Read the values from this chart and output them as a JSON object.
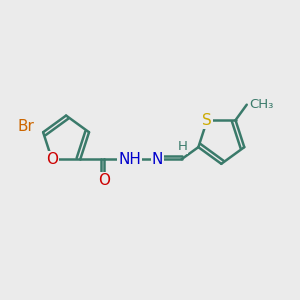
{
  "bg_color": "#ebebeb",
  "bond_color": "#3a7a6a",
  "bond_width": 1.8,
  "atom_colors": {
    "Br": "#cc6600",
    "O": "#cc0000",
    "N": "#0000cc",
    "S": "#ccaa00",
    "C": "#3a7a6a",
    "H": "#3a7a6a"
  },
  "font_size": 11,
  "font_size_small": 9.5
}
